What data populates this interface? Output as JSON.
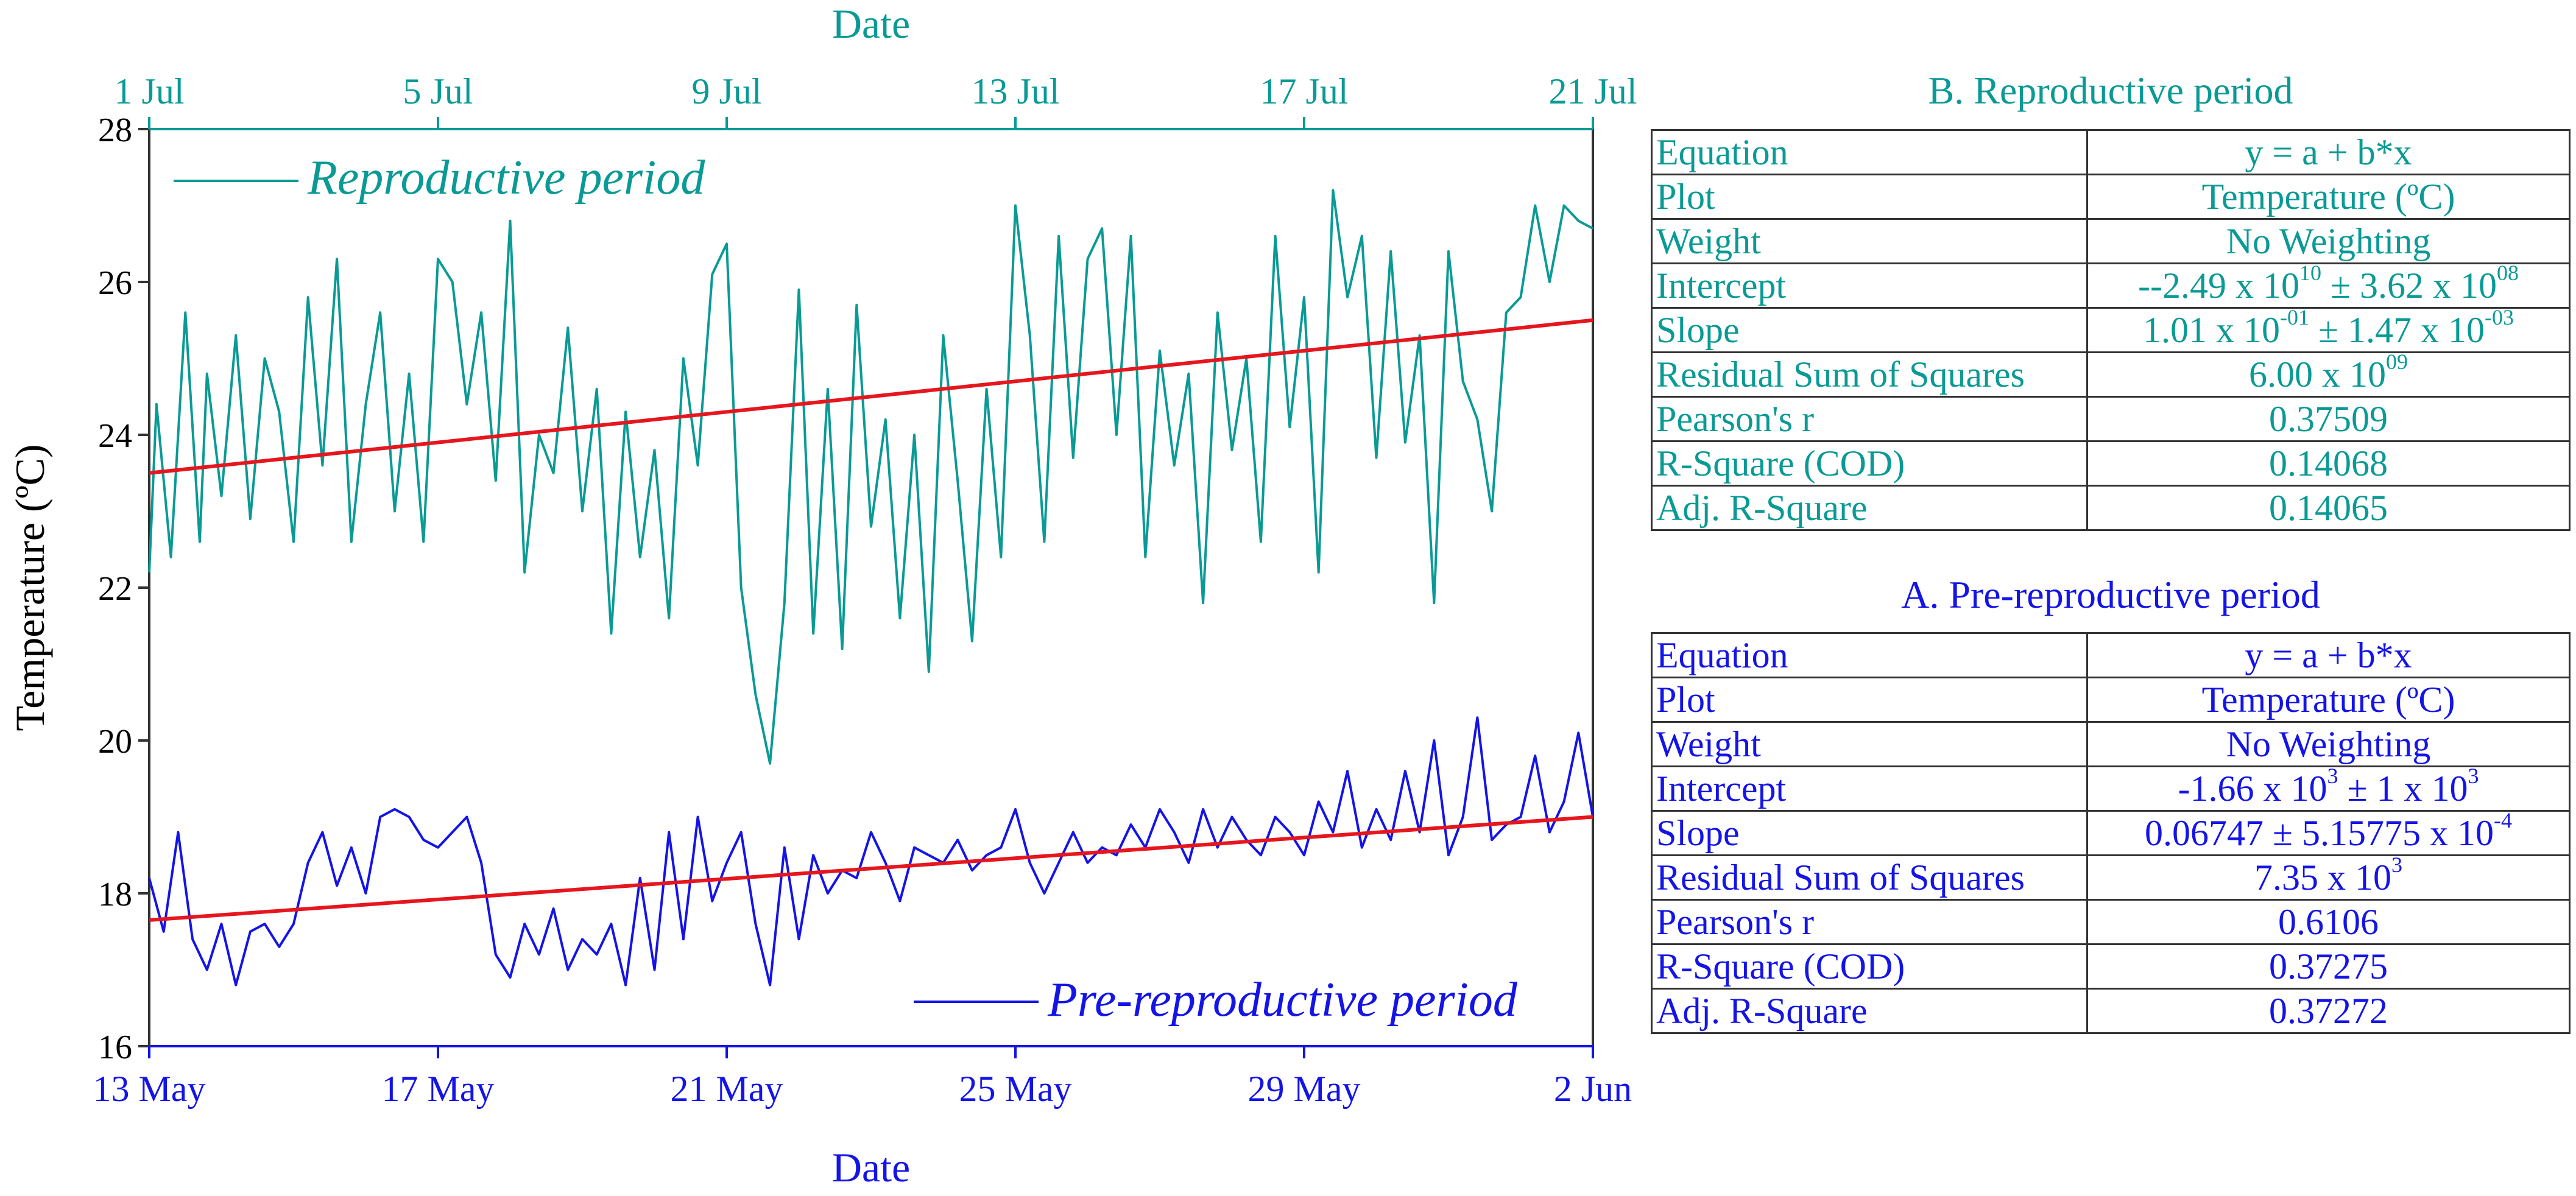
{
  "colors": {
    "teal": "#0a9a95",
    "blue": "#1414e6",
    "red": "#e6161e",
    "axis": "#333333"
  },
  "chart_data": {
    "type": "line",
    "ylabel": "Temperature (ºC)",
    "ylim": [
      16,
      28
    ],
    "yticks": [
      "16",
      "18",
      "20",
      "22",
      "24",
      "26",
      "28"
    ],
    "top_axis": {
      "label": "Date",
      "ticks": [
        "1 Jul",
        "5 Jul",
        "9 Jul",
        "13 Jul",
        "17 Jul",
        "21 Jul"
      ],
      "range_days": [
        0,
        20
      ]
    },
    "bottom_axis": {
      "label": "Date",
      "ticks": [
        "13 May",
        "17 May",
        "21 May",
        "25 May",
        "29 May",
        "2 Jun"
      ],
      "range_days": [
        0,
        20
      ]
    },
    "series": [
      {
        "name": "Reproductive period",
        "axis": "top",
        "color": "#0a9a95",
        "legend": "Reproductive period",
        "x": [
          0,
          0.1,
          0.3,
          0.5,
          0.7,
          0.8,
          1.0,
          1.2,
          1.4,
          1.6,
          1.8,
          2.0,
          2.2,
          2.4,
          2.6,
          2.8,
          3.0,
          3.2,
          3.4,
          3.6,
          3.8,
          4.0,
          4.2,
          4.4,
          4.6,
          4.8,
          5.0,
          5.2,
          5.4,
          5.6,
          5.8,
          6.0,
          6.2,
          6.4,
          6.6,
          6.8,
          7.0,
          7.2,
          7.4,
          7.6,
          7.8,
          8.0,
          8.2,
          8.4,
          8.6,
          8.8,
          9.0,
          9.2,
          9.4,
          9.6,
          9.8,
          10.0,
          10.2,
          10.4,
          10.6,
          10.8,
          11.0,
          11.2,
          11.4,
          11.6,
          11.8,
          12.0,
          12.2,
          12.4,
          12.6,
          12.8,
          13.0,
          13.2,
          13.4,
          13.6,
          13.8,
          14.0,
          14.2,
          14.4,
          14.6,
          14.8,
          15.0,
          15.2,
          15.4,
          15.6,
          15.8,
          16.0,
          16.2,
          16.4,
          16.6,
          16.8,
          17.0,
          17.2,
          17.4,
          17.6,
          17.8,
          18.0,
          18.2,
          18.4,
          18.6,
          18.8,
          19.0,
          19.2,
          19.4,
          19.6,
          19.8,
          20.0
        ],
        "y": [
          22.2,
          24.4,
          22.4,
          25.6,
          22.6,
          24.8,
          23.2,
          25.3,
          22.9,
          25.0,
          24.3,
          22.6,
          25.8,
          23.6,
          26.3,
          22.6,
          24.4,
          25.6,
          23.0,
          24.8,
          22.6,
          26.3,
          26.0,
          24.4,
          25.6,
          23.4,
          26.8,
          22.2,
          24.0,
          23.5,
          25.4,
          23.0,
          24.6,
          21.4,
          24.3,
          22.4,
          23.8,
          21.6,
          25.0,
          23.6,
          26.1,
          26.5,
          22.0,
          20.6,
          19.7,
          21.8,
          25.9,
          21.4,
          24.6,
          21.2,
          25.7,
          22.8,
          24.2,
          21.6,
          24.0,
          20.9,
          25.3,
          23.4,
          21.3,
          24.6,
          22.4,
          27.0,
          25.3,
          22.6,
          26.6,
          23.7,
          26.3,
          26.7,
          24.0,
          26.6,
          22.4,
          25.1,
          23.6,
          24.8,
          21.8,
          25.6,
          23.8,
          25.0,
          22.6,
          26.6,
          24.1,
          25.8,
          22.2,
          27.2,
          25.8,
          26.6,
          23.7,
          26.4,
          23.9,
          25.3,
          21.8,
          26.4,
          24.7,
          24.2,
          23.0,
          25.6,
          25.8,
          27.0,
          26.0,
          27.0,
          26.8,
          26.7
        ]
      },
      {
        "name": "Pre-reproductive period",
        "axis": "bottom",
        "color": "#1414e6",
        "legend": "Pre-reproductive period",
        "x": [
          0,
          0.2,
          0.4,
          0.6,
          0.8,
          1.0,
          1.2,
          1.4,
          1.6,
          1.8,
          2.0,
          2.2,
          2.4,
          2.6,
          2.8,
          3.0,
          3.2,
          3.4,
          3.6,
          3.8,
          4.0,
          4.2,
          4.4,
          4.6,
          4.8,
          5.0,
          5.2,
          5.4,
          5.6,
          5.8,
          6.0,
          6.2,
          6.4,
          6.6,
          6.8,
          7.0,
          7.2,
          7.4,
          7.6,
          7.8,
          8.0,
          8.2,
          8.4,
          8.6,
          8.8,
          9.0,
          9.2,
          9.4,
          9.6,
          9.8,
          10.0,
          10.2,
          10.4,
          10.6,
          10.8,
          11.0,
          11.2,
          11.4,
          11.6,
          11.8,
          12.0,
          12.2,
          12.4,
          12.6,
          12.8,
          13.0,
          13.2,
          13.4,
          13.6,
          13.8,
          14.0,
          14.2,
          14.4,
          14.6,
          14.8,
          15.0,
          15.2,
          15.4,
          15.6,
          15.8,
          16.0,
          16.2,
          16.4,
          16.6,
          16.8,
          17.0,
          17.2,
          17.4,
          17.6,
          17.8,
          18.0,
          18.2,
          18.4,
          18.6,
          18.8,
          19.0,
          19.2,
          19.4,
          19.6,
          19.8,
          20.0
        ],
        "y": [
          18.2,
          17.5,
          18.8,
          17.4,
          17.0,
          17.6,
          16.8,
          17.5,
          17.6,
          17.3,
          17.6,
          18.4,
          18.8,
          18.1,
          18.6,
          18.0,
          19.0,
          19.1,
          19.0,
          18.7,
          18.6,
          18.8,
          19.0,
          18.4,
          17.2,
          16.9,
          17.6,
          17.2,
          17.8,
          17.0,
          17.4,
          17.2,
          17.6,
          16.8,
          18.2,
          17.0,
          18.8,
          17.4,
          19.0,
          17.9,
          18.4,
          18.8,
          17.6,
          16.8,
          18.6,
          17.4,
          18.5,
          18.0,
          18.3,
          18.2,
          18.8,
          18.4,
          17.9,
          18.6,
          18.5,
          18.4,
          18.7,
          18.3,
          18.5,
          18.6,
          19.1,
          18.4,
          18.0,
          18.4,
          18.8,
          18.4,
          18.6,
          18.5,
          18.9,
          18.6,
          19.1,
          18.8,
          18.4,
          19.1,
          18.6,
          19.0,
          18.7,
          18.5,
          19.0,
          18.8,
          18.5,
          19.2,
          18.8,
          19.6,
          18.6,
          19.1,
          18.7,
          19.6,
          18.8,
          20.0,
          18.5,
          19.0,
          20.3,
          18.7,
          18.9,
          19.0,
          19.8,
          18.8,
          19.2,
          20.1,
          19.0
        ]
      },
      {
        "name": "Reproductive fit",
        "axis": "top",
        "color": "#e6161e",
        "x": [
          0,
          20
        ],
        "y": [
          23.5,
          25.5
        ]
      },
      {
        "name": "Pre-reproductive fit",
        "axis": "bottom",
        "color": "#e6161e",
        "x": [
          0,
          20
        ],
        "y": [
          17.65,
          19.0
        ]
      }
    ]
  },
  "table_b": {
    "title": "B. Reproductive period",
    "rows": {
      "equation": {
        "label": "Equation",
        "value": "y = a + b*x"
      },
      "plot": {
        "label": "Plot",
        "value": "Temperature (ºC)"
      },
      "weight": {
        "label": "Weight",
        "value": "No Weighting"
      },
      "intercept": {
        "label": "Intercept",
        "base1": "--2.49 x 10",
        "exp1": "10",
        "base2": " ± 3.62 x 10",
        "exp2": "08"
      },
      "slope": {
        "label": "Slope",
        "base1": "1.01 x 10",
        "exp1": "-01",
        "base2": " ± 1.47 x 10",
        "exp2": "-03"
      },
      "rss": {
        "label": "Residual Sum of Squares",
        "base1": "6.00 x 10",
        "exp1": "09"
      },
      "pearson": {
        "label": "Pearson's r",
        "value": "0.37509"
      },
      "rsq": {
        "label": "R-Square (COD)",
        "value": "0.14068"
      },
      "adjrsq": {
        "label": "Adj. R-Square",
        "value": "0.14065"
      }
    }
  },
  "table_a": {
    "title": "A. Pre-reproductive period",
    "rows": {
      "equation": {
        "label": "Equation",
        "value": "y = a + b*x"
      },
      "plot": {
        "label": "Plot",
        "value": "Temperature (ºC)"
      },
      "weight": {
        "label": "Weight",
        "value": "No Weighting"
      },
      "intercept": {
        "label": "Intercept",
        "base1": "-1.66 x 10",
        "exp1": "3",
        "base2": " ± 1 x 10",
        "exp2": "3"
      },
      "slope": {
        "label": "Slope",
        "base1": "0.06747 ± 5.15775 x 10",
        "exp1": "-4"
      },
      "rss": {
        "label": "Residual Sum of Squares",
        "base1": "7.35 x 10",
        "exp1": "3"
      },
      "pearson": {
        "label": "Pearson's r",
        "value": "0.6106"
      },
      "rsq": {
        "label": "R-Square (COD)",
        "value": "0.37275"
      },
      "adjrsq": {
        "label": "Adj. R-Square",
        "value": "0.37272"
      }
    }
  }
}
